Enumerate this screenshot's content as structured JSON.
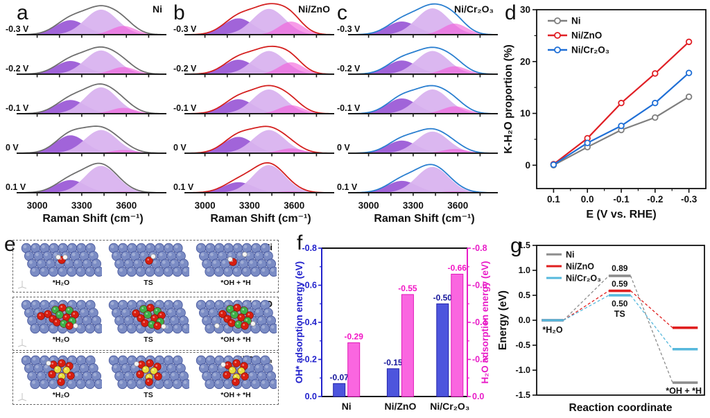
{
  "panel_labels": {
    "a": "a",
    "b": "b",
    "c": "c",
    "d": "d",
    "e": "e",
    "f": "f",
    "g": "g"
  },
  "raman_common": {
    "xlabel": "Raman Shift (cm⁻¹)",
    "x_tick_labels": [
      "3000",
      "3300",
      "3600"
    ],
    "x_tick_values": [
      3000,
      3300,
      3600
    ],
    "x_minor_ticks": [
      3150,
      3450,
      3750
    ],
    "x_range": [
      2890,
      3860
    ],
    "voltages": [
      "-0.3 V",
      "-0.2 V",
      "-0.1 V",
      "0 V",
      "0.1 V"
    ],
    "peak_colors": [
      "#9149d2",
      "#d9b3ef",
      "#f25ad8"
    ],
    "peak_centers": [
      3225,
      3430,
      3580
    ],
    "peak_sigmas": [
      100,
      108,
      82
    ]
  },
  "chart_data": [
    {
      "id": "a",
      "type": "area",
      "title": "Ni",
      "envelope_color": "#6f6f6f",
      "amplitudes": [
        [
          0.55,
          0.95,
          0.33
        ],
        [
          0.5,
          0.9,
          0.27
        ],
        [
          0.52,
          1.0,
          0.22
        ],
        [
          0.68,
          0.88,
          0.12
        ],
        [
          0.48,
          1.02,
          0.04
        ]
      ]
    },
    {
      "id": "b",
      "type": "area",
      "title": "Ni/ZnO",
      "envelope_color": "#d4201f",
      "amplitudes": [
        [
          0.62,
          0.98,
          0.5
        ],
        [
          0.55,
          0.88,
          0.45
        ],
        [
          0.55,
          0.92,
          0.32
        ],
        [
          0.62,
          0.88,
          0.18
        ],
        [
          0.4,
          1.05,
          0.05
        ]
      ]
    },
    {
      "id": "c",
      "type": "area",
      "title": "Ni/Cr₂O₃",
      "envelope_color": "#2a7fd0",
      "amplitudes": [
        [
          0.5,
          1.0,
          0.42
        ],
        [
          0.52,
          0.88,
          0.3
        ],
        [
          0.58,
          0.92,
          0.28
        ],
        [
          0.48,
          0.82,
          0.16
        ],
        [
          0.45,
          0.98,
          0.05
        ]
      ]
    },
    {
      "id": "d",
      "type": "line",
      "xlabel": "E (V vs. RHE)",
      "ylabel": "K-H₂O proportion (%)",
      "x": [
        0.1,
        0.0,
        -0.1,
        -0.2,
        -0.3
      ],
      "x_tick_labels": [
        "0.1",
        "0.0",
        "-0.1",
        "-0.2",
        "-0.3"
      ],
      "yticks": [
        0,
        10,
        20,
        30
      ],
      "ytick_labels": [
        "0",
        "10",
        "20",
        "30"
      ],
      "yminor": [
        5,
        15,
        25
      ],
      "ylim": [
        -4.5,
        30
      ],
      "legend_position": "top-left",
      "grid": false,
      "series": [
        {
          "name": "Ni",
          "color": "#7f7f7f",
          "values": [
            0.0,
            3.5,
            6.8,
            9.2,
            13.2
          ]
        },
        {
          "name": "Ni/ZnO",
          "color": "#e02026",
          "values": [
            0.2,
            5.2,
            12.0,
            17.7,
            23.8
          ]
        },
        {
          "name": "Ni/Cr₂O₃",
          "color": "#1f6fd6",
          "values": [
            0.1,
            4.3,
            7.6,
            12.0,
            17.8
          ]
        }
      ]
    },
    {
      "id": "f",
      "type": "bar",
      "categories": [
        "Ni",
        "Ni/ZnO",
        "Ni/Cr₂O₃"
      ],
      "ylim": [
        0,
        -0.8
      ],
      "left_axis": {
        "label": "OH* adsorption energy (eV)",
        "color": "#2222cc",
        "label_color": "#15159a",
        "tick_labels": [
          "-0.8",
          "-0.6",
          "-0.4",
          "-0.2",
          "0.0"
        ],
        "tick_values": [
          -0.8,
          -0.6,
          -0.4,
          -0.2,
          0.0
        ]
      },
      "right_axis": {
        "label": "H₂O adsorption energy (eV)",
        "color": "#e81ec8",
        "label_color": "#f215c5",
        "tick_labels": [
          "-0.8",
          "-0.6",
          "-0.4",
          "-0.2",
          "0.0"
        ],
        "tick_values": [
          -0.8,
          -0.6,
          -0.4,
          -0.2,
          0.0
        ]
      },
      "series": [
        {
          "name": "OH*",
          "fill": "#4d55dd",
          "stroke": "#2222aa",
          "values": [
            -0.07,
            -0.15,
            -0.5
          ],
          "value_labels": [
            "-0.07",
            "-0.15",
            "-0.50"
          ]
        },
        {
          "name": "H₂O",
          "fill": "#fa66e0",
          "stroke": "#e018b8",
          "values": [
            -0.29,
            -0.55,
            -0.66
          ],
          "value_labels": [
            "-0.29",
            "-0.55",
            "-0.66"
          ]
        }
      ]
    },
    {
      "id": "g",
      "type": "line",
      "subtype": "energy-diagram",
      "xlabel": "Reaction coordinate",
      "ylabel": "Energy (eV)",
      "ylim": [
        -1.5,
        1.5
      ],
      "ytick_labels": [
        "1.5",
        "1.0",
        "0.5",
        "0.0",
        "-0.5",
        "-1.0",
        "-1.5"
      ],
      "ytick_values": [
        1.5,
        1.0,
        0.5,
        0.0,
        -0.5,
        -1.0,
        -1.5
      ],
      "states": [
        "*H₂O",
        "TS",
        "*OH + *H"
      ],
      "ts_labels": [
        "0.89",
        "0.59",
        "0.50"
      ],
      "ts_caption": "TS",
      "legend_position": "top-left",
      "series": [
        {
          "name": "Ni",
          "color": "#8c8c8c",
          "values": [
            0.0,
            0.89,
            -1.25
          ]
        },
        {
          "name": "Ni/ZnO",
          "color": "#e01f1f",
          "values": [
            0.0,
            0.59,
            -0.15
          ]
        },
        {
          "name": "Ni/Cr₂O₃",
          "color": "#56b8dc",
          "values": [
            0.0,
            0.5,
            -0.58
          ]
        }
      ]
    }
  ],
  "panel_e": {
    "rows": [
      {
        "name": "Ni",
        "cluster": "none",
        "cells": [
          "*H₂O",
          "TS",
          "*OH + *H"
        ]
      },
      {
        "name": "Ni/ZnO",
        "cluster": "ZnO",
        "cells": [
          "*H₂O",
          "TS",
          "*OH + *H"
        ]
      },
      {
        "name": "Ni/Cr₂O₃",
        "cluster": "Cr2O3",
        "cells": [
          "*H₂O",
          "TS",
          "*OH + *H"
        ]
      }
    ],
    "atom_colors": {
      "lattice": "#7b8cc4",
      "lattice_edge": "#44549a",
      "O": "#d81e10",
      "H": "#f4f4f4",
      "Zn": "#3cb04a",
      "Cr": "#e6de3c"
    }
  }
}
